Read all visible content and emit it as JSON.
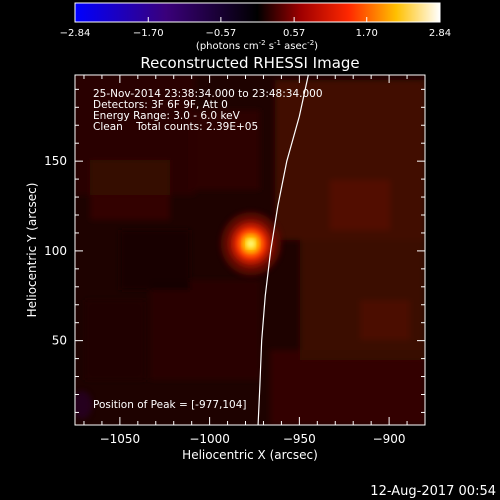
{
  "chart_data": {
    "type": "heatmap",
    "title": "Reconstructed RHESSI Image",
    "colorbar": {
      "ticks": [
        "-2.84",
        "-1.70",
        "-0.57",
        "0.57",
        "1.70",
        "2.84"
      ],
      "range": [
        -2.84,
        2.84
      ],
      "colormap": "blue-black-red-yellow-white",
      "unit_label": {
        "prefix": "(photons cm",
        "sup1": "-2",
        "mid1": " s",
        "sup2": "-1",
        "mid2": " asec",
        "sup3": "-2",
        "suffix": ")"
      }
    },
    "xlabel": "Heliocentric X (arcsec)",
    "ylabel": "Heliocentric Y (arcsec)",
    "xlim": [
      -1075,
      -880
    ],
    "ylim": [
      3,
      198
    ],
    "xticks": [
      -1050,
      -1000,
      -950,
      -900
    ],
    "yticks": [
      50,
      100,
      150
    ],
    "xtick_labels": [
      "−1050",
      "−1000",
      "−950",
      "−900"
    ],
    "ytick_labels": [
      "50",
      "100",
      "150"
    ],
    "annotations": [
      "25-Nov-2014 23:38:34.000 to 23:48:34.000",
      "Detectors: 3F 6F 9F, Att 0",
      "Energy Range: 3.0 - 6.0 keV",
      "Clean    Total counts: 2.39E+05"
    ],
    "peak_label": "Position of Peak = [-977,104]",
    "peak": {
      "x": -977,
      "y": 104
    },
    "limb_curve": [
      {
        "x": -945,
        "y": 198
      },
      {
        "x": -950,
        "y": 175
      },
      {
        "x": -957,
        "y": 150
      },
      {
        "x": -962,
        "y": 125
      },
      {
        "x": -966,
        "y": 100
      },
      {
        "x": -969,
        "y": 75
      },
      {
        "x": -971,
        "y": 50
      },
      {
        "x": -972,
        "y": 25
      },
      {
        "x": -973,
        "y": 3
      }
    ],
    "grid": false
  },
  "footer": {
    "timestamp": "12-Aug-2017 00:54"
  }
}
